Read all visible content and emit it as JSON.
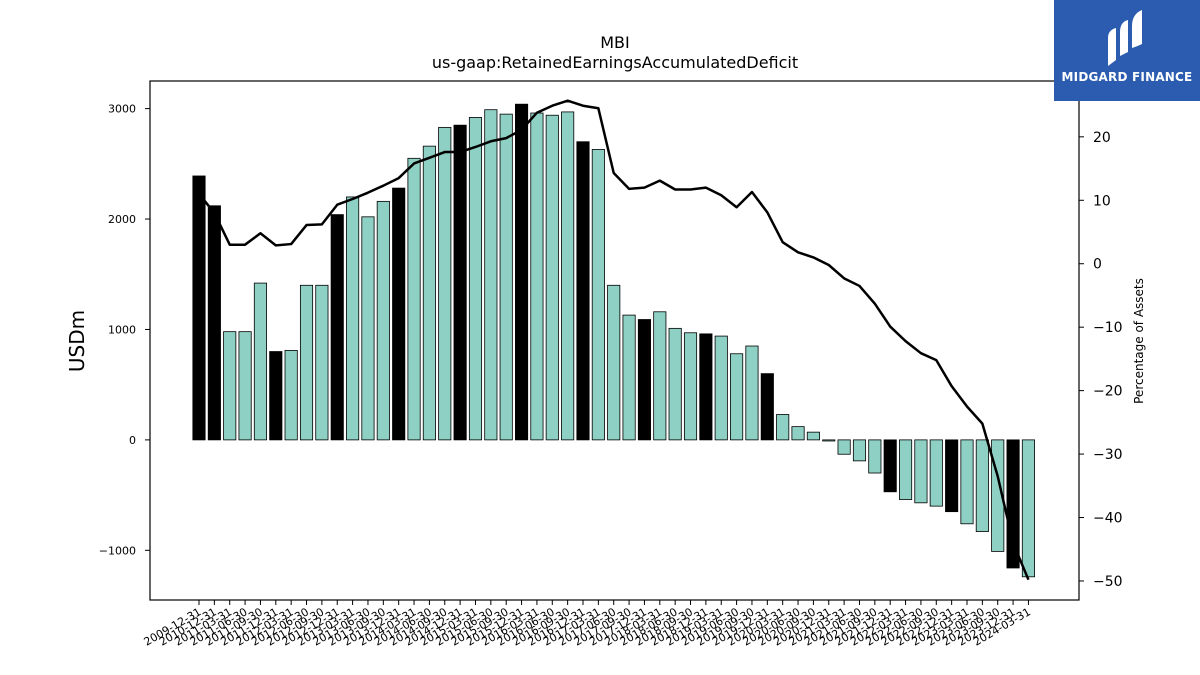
{
  "chart_data": {
    "type": "bar",
    "title": "MBI",
    "subtitle": "us-gaap:RetainedEarningsAccumulatedDeficit",
    "ylabel": "USDm",
    "y2label": "Percentage of Assets",
    "ylim": [
      -1450,
      3250
    ],
    "y2lim": [
      -53.0,
      28.8
    ],
    "yticks": [
      -1000,
      0,
      1000,
      2000,
      3000
    ],
    "y2ticks": [
      -50,
      -40,
      -30,
      -20,
      -10,
      0,
      10,
      20
    ],
    "tick_labels": [
      "2009-12-31",
      "2010-12-31",
      "2011-03-31",
      "2011-06-30",
      "2011-09-30",
      "2011-12-31",
      "2012-03-31",
      "2012-06-30",
      "2012-09-30",
      "2012-12-31",
      "2013-03-31",
      "2013-06-30",
      "2013-09-30",
      "2013-12-31",
      "2014-03-31",
      "2014-06-30",
      "2014-09-30",
      "2014-12-31",
      "2015-03-31",
      "2015-06-30",
      "2015-09-30",
      "2015-12-31",
      "2016-03-31",
      "2016-06-30",
      "2016-09-30",
      "2016-12-31",
      "2017-03-31",
      "2017-06-30",
      "2017-09-30",
      "2017-12-31",
      "2018-03-31",
      "2018-06-30",
      "2018-09-30",
      "2018-12-31",
      "2019-03-31",
      "2019-06-30",
      "2019-09-30",
      "2019-12-31",
      "2020-03-31",
      "2020-06-30",
      "2020-09-30",
      "2020-12-31",
      "2021-03-31",
      "2021-06-30",
      "2021-09-30",
      "2021-12-31",
      "2022-03-31",
      "2022-06-30",
      "2022-09-30",
      "2022-12-31",
      "2023-03-31",
      "2023-06-30",
      "2023-09-30",
      "2023-12-31",
      "2024-03-31"
    ],
    "bar_values": [
      2390,
      2120,
      980,
      980,
      1420,
      800,
      810,
      1400,
      1400,
      2040,
      2200,
      2020,
      2160,
      2280,
      2550,
      2660,
      2830,
      2850,
      2920,
      2990,
      2950,
      3040,
      2960,
      2940,
      2970,
      2700,
      2630,
      1400,
      1130,
      1090,
      1160,
      1010,
      970,
      960,
      940,
      780,
      850,
      600,
      230,
      120,
      70,
      -10,
      -130,
      -190,
      -300,
      -470,
      -540,
      -570,
      -600,
      -650,
      -760,
      -830,
      -1010,
      -1160,
      -1240
    ],
    "bar_highlight": [
      true,
      true,
      false,
      false,
      false,
      true,
      false,
      false,
      false,
      true,
      false,
      false,
      false,
      true,
      false,
      false,
      false,
      true,
      false,
      false,
      false,
      true,
      false,
      false,
      false,
      true,
      false,
      false,
      false,
      true,
      false,
      false,
      false,
      true,
      false,
      false,
      false,
      true,
      false,
      false,
      false,
      false,
      false,
      false,
      false,
      true,
      false,
      false,
      false,
      true,
      false,
      false,
      false,
      true,
      false
    ],
    "line_values": [
      11.0,
      8.0,
      3.0,
      3.0,
      4.8,
      2.9,
      3.1,
      6.1,
      6.2,
      9.3,
      10.2,
      11.2,
      12.3,
      13.5,
      15.8,
      16.7,
      17.6,
      17.6,
      18.4,
      19.3,
      19.8,
      21.1,
      23.8,
      24.9,
      25.7,
      24.9,
      24.5,
      14.3,
      11.8,
      12.0,
      13.1,
      11.7,
      11.7,
      12.0,
      10.8,
      8.9,
      11.3,
      8.1,
      3.4,
      1.8,
      1.0,
      -0.2,
      -2.3,
      -3.5,
      -6.3,
      -9.9,
      -12.2,
      -14.1,
      -15.2,
      -19.3,
      -22.5,
      -25.2,
      -33.5,
      -44.0,
      -49.8
    ],
    "colors": {
      "bar": "#8fd0c4",
      "bar_highlight": "#000000",
      "line": "#000000"
    },
    "grid": false
  },
  "logo": {
    "name": "MIDGARD FINANCE"
  }
}
